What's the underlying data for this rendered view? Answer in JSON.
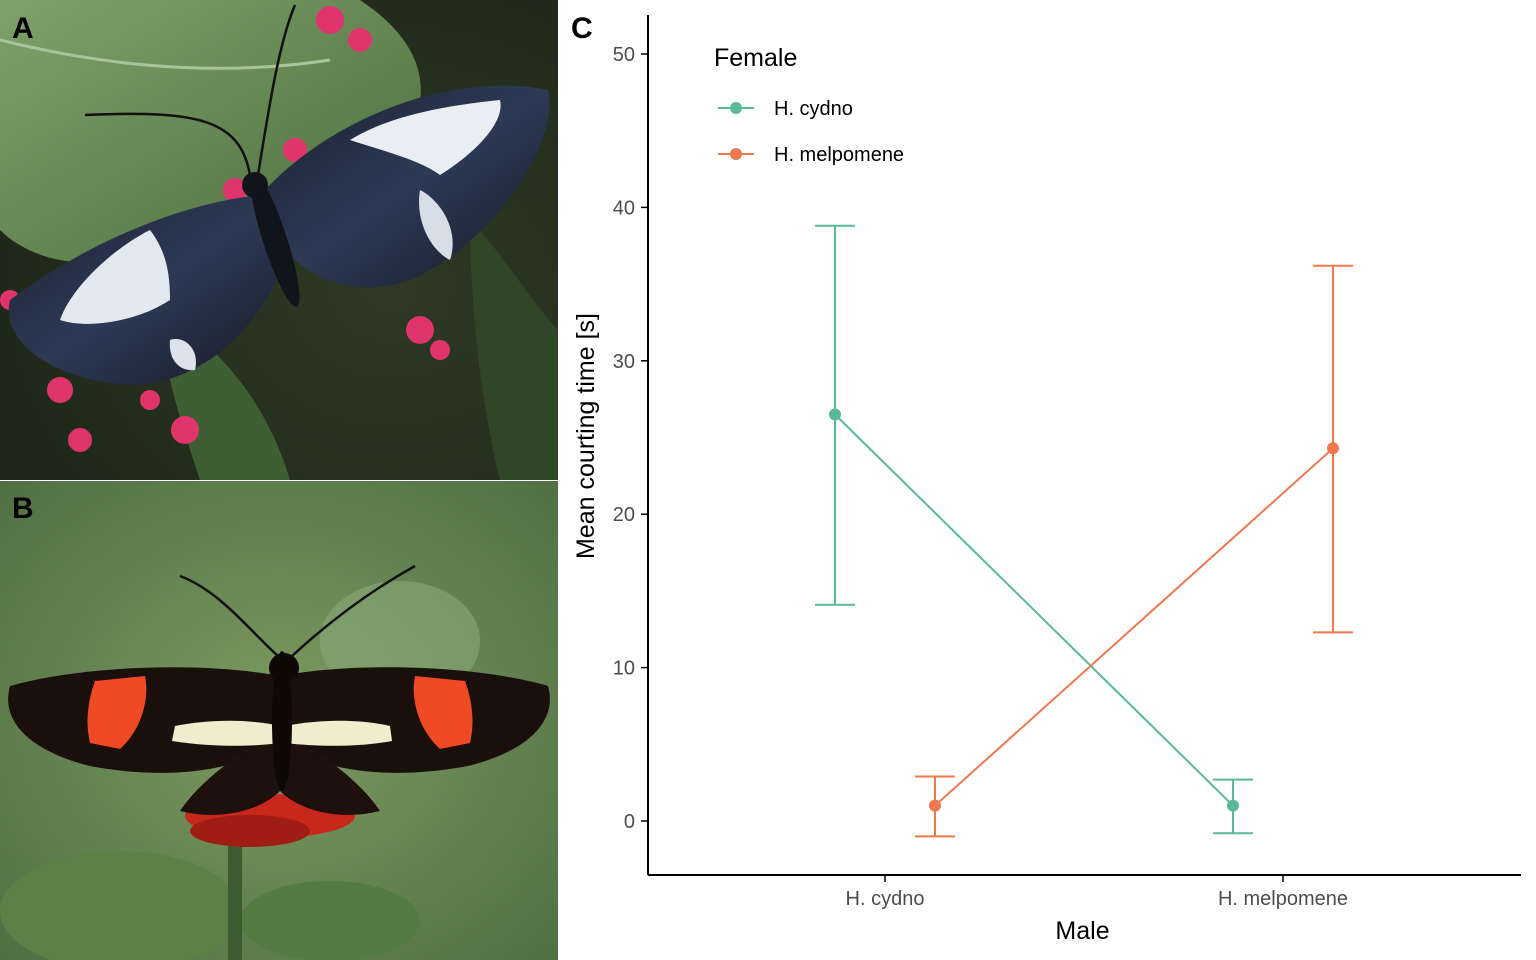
{
  "panels": {
    "a_label": "A",
    "b_label": "B",
    "c_label": "C"
  },
  "photos": {
    "a": {
      "subject": "butterfly-blue-white-on-leaf"
    },
    "b": {
      "subject": "butterfly-black-red-on-flower"
    }
  },
  "colors": {
    "cydno": "#5ab99a",
    "melpomene": "#f0784e",
    "axis": "#000000",
    "tick_text": "#4d4d4d"
  },
  "chart_data": {
    "type": "line",
    "categories": [
      "H. cydno",
      "H. melpomene"
    ],
    "xlabel": "Male",
    "ylabel": "Mean courting time [s]",
    "ylim": [
      -3.5,
      52
    ],
    "yticks": [
      0,
      10,
      20,
      30,
      40,
      50
    ],
    "grid": false,
    "legend": {
      "title": "Female",
      "placement": "top-left",
      "entries": [
        "H. cydno",
        "H. melpomene"
      ]
    },
    "series": [
      {
        "name": "H. cydno",
        "color": "#5ab99a",
        "values": [
          26.5,
          1.0
        ],
        "err_low": [
          14.1,
          -0.8
        ],
        "err_high": [
          38.8,
          2.7
        ]
      },
      {
        "name": "H. melpomene",
        "color": "#f0784e",
        "values": [
          1.0,
          24.3
        ],
        "err_low": [
          -1.0,
          12.3
        ],
        "err_high": [
          2.9,
          36.2
        ]
      }
    ]
  }
}
